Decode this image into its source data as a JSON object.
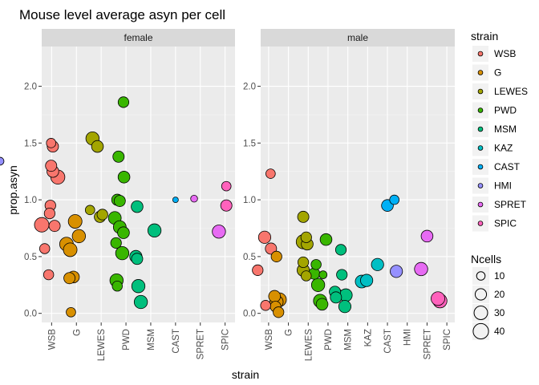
{
  "chart_data": {
    "type": "scatter",
    "title": "Mouse level average asyn per cell",
    "xlabel": "strain",
    "ylabel": "prop.asyn",
    "ylim": [
      -0.08,
      2.35
    ],
    "yticks": [
      0.0,
      0.5,
      1.0,
      1.5,
      2.0
    ],
    "ytick_labels": [
      "0.0",
      "0.5",
      "1.0",
      "1.5",
      "2.0"
    ],
    "grid": true,
    "legend_position": "right",
    "colors": {
      "WSB": "#F8766D",
      "G": "#D89000",
      "LEWES": "#A3A500",
      "PWD": "#39B600",
      "MSM": "#00BF7D",
      "KAZ": "#00BFC4",
      "CAST": "#00B0F6",
      "HMI": "#9590FF",
      "SPRET": "#E76BF3",
      "SPIC": "#FF62BC"
    },
    "panels": [
      {
        "label": "female",
        "categories": [
          "WSB",
          "G",
          "LEWES",
          "PWD",
          "MSM",
          "CAST",
          "SPRET",
          "SPIC"
        ],
        "points": [
          {
            "strain": "WSB",
            "x": -0.4,
            "y": 0.78,
            "n": 30
          },
          {
            "strain": "WSB",
            "x": -0.28,
            "y": 0.57,
            "n": 12
          },
          {
            "strain": "WSB",
            "x": -0.12,
            "y": 0.34,
            "n": 12
          },
          {
            "strain": "WSB",
            "x": -0.05,
            "y": 0.95,
            "n": 14
          },
          {
            "strain": "WSB",
            "x": -0.08,
            "y": 0.88,
            "n": 14
          },
          {
            "strain": "WSB",
            "x": -0.02,
            "y": 1.3,
            "n": 16
          },
          {
            "strain": "WSB",
            "x": 0.05,
            "y": 1.25,
            "n": 18
          },
          {
            "strain": "WSB",
            "x": -0.02,
            "y": 1.5,
            "n": 10
          },
          {
            "strain": "WSB",
            "x": 0.05,
            "y": 1.47,
            "n": 16
          },
          {
            "strain": "WSB",
            "x": 0.12,
            "y": 0.77,
            "n": 16
          },
          {
            "strain": "WSB",
            "x": 0.25,
            "y": 1.2,
            "n": 28
          },
          {
            "strain": "G",
            "x": -0.4,
            "y": 0.61,
            "n": 26
          },
          {
            "strain": "G",
            "x": -0.25,
            "y": 0.56,
            "n": 26
          },
          {
            "strain": "G",
            "x": -0.28,
            "y": 0.31,
            "n": 16
          },
          {
            "strain": "G",
            "x": -0.12,
            "y": 0.32,
            "n": 18
          },
          {
            "strain": "G",
            "x": -0.22,
            "y": 0.01,
            "n": 10
          },
          {
            "strain": "G",
            "x": -0.05,
            "y": 0.81,
            "n": 26
          },
          {
            "strain": "G",
            "x": 0.1,
            "y": 0.68,
            "n": 24
          },
          {
            "strain": "LEWES",
            "x": -0.35,
            "y": 1.54,
            "n": 24
          },
          {
            "strain": "LEWES",
            "x": -0.15,
            "y": 1.47,
            "n": 18
          },
          {
            "strain": "LEWES",
            "x": -0.45,
            "y": 0.91,
            "n": 10
          },
          {
            "strain": "LEWES",
            "x": -0.05,
            "y": 0.85,
            "n": 16
          },
          {
            "strain": "LEWES",
            "x": 0.05,
            "y": 0.87,
            "n": 14
          },
          {
            "strain": "PWD",
            "x": -0.45,
            "y": 0.84,
            "n": 22
          },
          {
            "strain": "PWD",
            "x": -0.25,
            "y": 0.76,
            "n": 22
          },
          {
            "strain": "PWD",
            "x": -0.4,
            "y": 0.62,
            "n": 14
          },
          {
            "strain": "PWD",
            "x": -0.38,
            "y": 0.29,
            "n": 24
          },
          {
            "strain": "PWD",
            "x": -0.35,
            "y": 0.24,
            "n": 12
          },
          {
            "strain": "PWD",
            "x": -0.3,
            "y": 1.38,
            "n": 16
          },
          {
            "strain": "PWD",
            "x": -0.35,
            "y": 1.0,
            "n": 16
          },
          {
            "strain": "PWD",
            "x": -0.25,
            "y": 0.99,
            "n": 16
          },
          {
            "strain": "PWD",
            "x": -0.08,
            "y": 1.2,
            "n": 18
          },
          {
            "strain": "PWD",
            "x": -0.1,
            "y": 0.71,
            "n": 18
          },
          {
            "strain": "PWD",
            "x": -0.15,
            "y": 0.53,
            "n": 24
          },
          {
            "strain": "PWD",
            "x": -0.1,
            "y": 1.86,
            "n": 14
          },
          {
            "strain": "MSM",
            "x": -0.55,
            "y": 0.94,
            "n": 18
          },
          {
            "strain": "MSM",
            "x": -0.6,
            "y": 0.5,
            "n": 20
          },
          {
            "strain": "MSM",
            "x": -0.55,
            "y": 0.48,
            "n": 16
          },
          {
            "strain": "MSM",
            "x": -0.5,
            "y": 0.24,
            "n": 24
          },
          {
            "strain": "MSM",
            "x": -0.4,
            "y": 0.1,
            "n": 24
          },
          {
            "strain": "MSM",
            "x": 0.15,
            "y": 0.73,
            "n": 24
          },
          {
            "strain": "CAST",
            "x": 0.0,
            "y": 1.0,
            "n": 2
          },
          {
            "strain": "HMI",
            "x": 0.45,
            "y": 1.34,
            "n": 6
          },
          {
            "strain": "SPRET",
            "x": -0.25,
            "y": 1.01,
            "n": 4
          },
          {
            "strain": "SPRET",
            "x": 0.75,
            "y": 0.72,
            "n": 24
          },
          {
            "strain": "SPIC",
            "x": 0.05,
            "y": 1.12,
            "n": 10
          },
          {
            "strain": "SPIC",
            "x": 0.05,
            "y": 0.95,
            "n": 16
          }
        ]
      },
      {
        "label": "male",
        "categories": [
          "WSB",
          "G",
          "LEWES",
          "PWD",
          "MSM",
          "KAZ",
          "CAST",
          "HMI",
          "SPRET",
          "SPIC"
        ],
        "points": [
          {
            "strain": "WSB",
            "x": -0.55,
            "y": 0.38,
            "n": 14
          },
          {
            "strain": "WSB",
            "x": -0.2,
            "y": 0.67,
            "n": 20
          },
          {
            "strain": "WSB",
            "x": -0.15,
            "y": 0.07,
            "n": 12
          },
          {
            "strain": "WSB",
            "x": 0.1,
            "y": 1.23,
            "n": 10
          },
          {
            "strain": "WSB",
            "x": 0.12,
            "y": 0.57,
            "n": 16
          },
          {
            "strain": "G",
            "x": -0.6,
            "y": 0.5,
            "n": 14
          },
          {
            "strain": "G",
            "x": -0.7,
            "y": 0.15,
            "n": 18
          },
          {
            "strain": "G",
            "x": -0.6,
            "y": 0.1,
            "n": 24
          },
          {
            "strain": "G",
            "x": -0.65,
            "y": 0.06,
            "n": 14
          },
          {
            "strain": "G",
            "x": -0.5,
            "y": 0.01,
            "n": 14
          },
          {
            "strain": "G",
            "x": -0.45,
            "y": 0.12,
            "n": 26
          },
          {
            "strain": "LEWES",
            "x": -0.25,
            "y": 0.85,
            "n": 16
          },
          {
            "strain": "LEWES",
            "x": -0.25,
            "y": 0.63,
            "n": 28
          },
          {
            "strain": "LEWES",
            "x": -0.1,
            "y": 0.67,
            "n": 14
          },
          {
            "strain": "LEWES",
            "x": -0.05,
            "y": 0.61,
            "n": 18
          },
          {
            "strain": "LEWES",
            "x": -0.25,
            "y": 0.45,
            "n": 14
          },
          {
            "strain": "LEWES",
            "x": -0.25,
            "y": 0.38,
            "n": 20
          },
          {
            "strain": "LEWES",
            "x": -0.1,
            "y": 0.33,
            "n": 12
          },
          {
            "strain": "PWD",
            "x": -0.6,
            "y": 0.43,
            "n": 12
          },
          {
            "strain": "PWD",
            "x": -0.7,
            "y": 0.35,
            "n": 16
          },
          {
            "strain": "PWD",
            "x": -0.5,
            "y": 0.25,
            "n": 24
          },
          {
            "strain": "PWD",
            "x": -0.25,
            "y": 0.34,
            "n": 6
          },
          {
            "strain": "PWD",
            "x": -0.1,
            "y": 0.65,
            "n": 18
          },
          {
            "strain": "PWD",
            "x": -0.4,
            "y": 0.11,
            "n": 24
          },
          {
            "strain": "PWD",
            "x": -0.3,
            "y": 0.08,
            "n": 18
          },
          {
            "strain": "MSM",
            "x": -0.65,
            "y": 0.19,
            "n": 16
          },
          {
            "strain": "MSM",
            "x": -0.6,
            "y": 0.14,
            "n": 16
          },
          {
            "strain": "MSM",
            "x": -0.55,
            "y": 0.16,
            "n": 22
          },
          {
            "strain": "MSM",
            "x": -0.35,
            "y": 0.56,
            "n": 14
          },
          {
            "strain": "MSM",
            "x": -0.3,
            "y": 0.34,
            "n": 14
          },
          {
            "strain": "MSM",
            "x": -0.1,
            "y": 0.16,
            "n": 22
          },
          {
            "strain": "MSM",
            "x": -0.15,
            "y": 0.06,
            "n": 20
          },
          {
            "strain": "KAZ",
            "x": -0.3,
            "y": 0.28,
            "n": 22
          },
          {
            "strain": "KAZ",
            "x": -0.05,
            "y": 0.29,
            "n": 20
          },
          {
            "strain": "KAZ",
            "x": 0.5,
            "y": 0.43,
            "n": 20
          },
          {
            "strain": "CAST",
            "x": 0.0,
            "y": 0.95,
            "n": 18
          },
          {
            "strain": "CAST",
            "x": 0.35,
            "y": 1.0,
            "n": 10
          },
          {
            "strain": "HMI",
            "x": -0.55,
            "y": 0.37,
            "n": 20
          },
          {
            "strain": "SPRET",
            "x": -0.3,
            "y": 0.39,
            "n": 24
          },
          {
            "strain": "SPRET",
            "x": 0.0,
            "y": 0.68,
            "n": 18
          },
          {
            "strain": "SPIC",
            "x": -0.45,
            "y": 0.13,
            "n": 26
          },
          {
            "strain": "SPIC",
            "x": -0.35,
            "y": 0.11,
            "n": 28
          }
        ]
      }
    ],
    "legend": {
      "color_title": "strain",
      "color_entries": [
        "WSB",
        "G",
        "LEWES",
        "PWD",
        "MSM",
        "KAZ",
        "CAST",
        "HMI",
        "SPRET",
        "SPIC"
      ],
      "size_title": "Ncells",
      "size_entries": [
        10,
        20,
        30,
        40
      ]
    }
  }
}
